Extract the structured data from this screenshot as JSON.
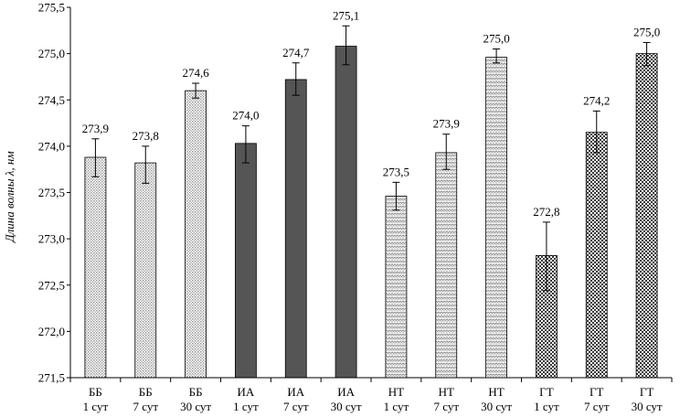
{
  "chart_data": {
    "type": "bar",
    "ylabel": "Длина волны λ, нм",
    "ylim": [
      271.5,
      275.5
    ],
    "yticks": [
      "271,5",
      "272,0",
      "272,5",
      "273,0",
      "273,5",
      "274,0",
      "274,5",
      "275,0",
      "275,5"
    ],
    "grid": false,
    "categories": [
      {
        "line1": "ББ",
        "line2": "1 сут"
      },
      {
        "line1": "ББ",
        "line2": "7 сут"
      },
      {
        "line1": "ББ",
        "line2": "30 сут"
      },
      {
        "line1": "ИА",
        "line2": "1 сут"
      },
      {
        "line1": "ИА",
        "line2": "7 сут"
      },
      {
        "line1": "ИА",
        "line2": "30 сут"
      },
      {
        "line1": "НТ",
        "line2": "1 сут"
      },
      {
        "line1": "НТ",
        "line2": "7 сут"
      },
      {
        "line1": "НТ",
        "line2": "30 сут"
      },
      {
        "line1": "ГТ",
        "line2": "1 сут"
      },
      {
        "line1": "ГТ",
        "line2": "7 сут"
      },
      {
        "line1": "ГТ",
        "line2": "30 сут"
      }
    ],
    "values": [
      273.88,
      273.82,
      274.6,
      274.03,
      274.72,
      275.08,
      273.46,
      273.93,
      274.96,
      272.82,
      274.15,
      275.0
    ],
    "error_low": [
      273.67,
      273.6,
      274.52,
      273.82,
      274.55,
      274.88,
      273.31,
      273.75,
      274.9,
      272.44,
      273.93,
      274.87
    ],
    "error_high": [
      274.08,
      274.0,
      274.68,
      274.22,
      274.9,
      275.3,
      273.61,
      274.13,
      275.05,
      273.18,
      274.38,
      275.12
    ],
    "data_labels": [
      "273,9",
      "273,8",
      "274,6",
      "274,0",
      "274,7",
      "275,1",
      "273,5",
      "273,9",
      "275,0",
      "272,8",
      "274,2",
      "275,0"
    ],
    "series_fills": [
      "dots-light",
      "dots-light",
      "dots-light",
      "dark",
      "dark",
      "dark",
      "wave",
      "wave",
      "wave",
      "checker",
      "checker",
      "checker"
    ],
    "colors": {
      "dark": "#555555",
      "axis": "#000000",
      "light_fill": "#dcdcdc"
    }
  }
}
